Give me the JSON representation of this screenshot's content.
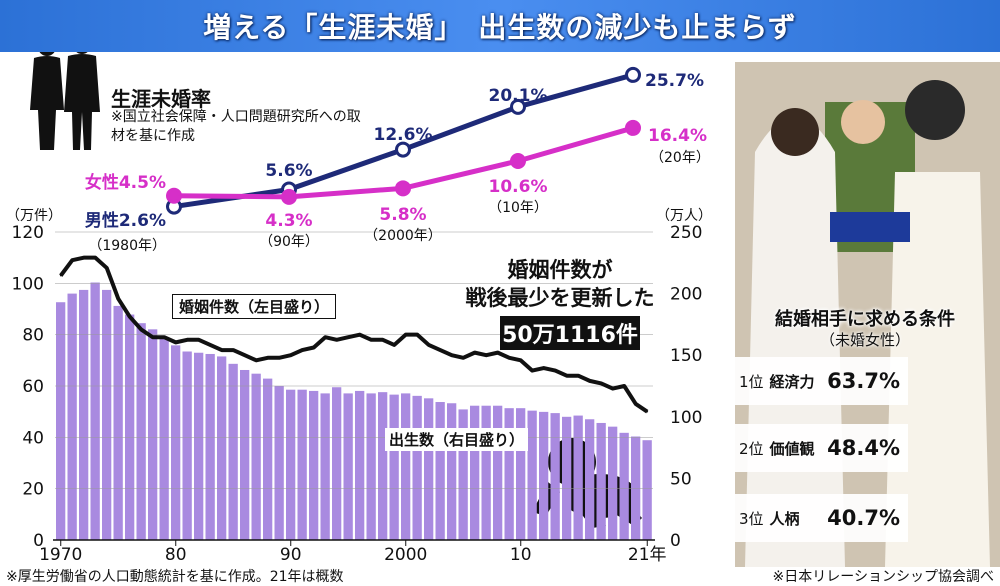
{
  "headline": "増える「生涯未婚」　出生数の減少も止まらず",
  "rate_panel": {
    "title": "生涯未婚率",
    "note": "※国立社会保障・人口問題研究所への取材を基に作成"
  },
  "callout": {
    "line1": "婚姻件数が",
    "line2": "戦後最少を更新した",
    "value": "50万1116件"
  },
  "series_labels": {
    "marriages": "婚姻件数（左目盛り）",
    "births": "出生数（右目盛り）"
  },
  "axis_units": {
    "left": "（万件）",
    "right": "（万人）"
  },
  "conditions": {
    "title": "結婚相手に求める条件",
    "subtitle": "（未婚女性）",
    "items": [
      {
        "rank": "1位",
        "label": "経済力",
        "value": "63.7%"
      },
      {
        "rank": "2位",
        "label": "価値観",
        "value": "48.4%"
      },
      {
        "rank": "3位",
        "label": "人柄",
        "value": "40.7%"
      }
    ]
  },
  "footer": {
    "left": "※厚生労働省の人口動態統計を基に作成。21年は概数",
    "right": "※日本リレーションシップ協会調べ"
  },
  "colors": {
    "banner": "#2c71d6",
    "men": "#1e2a78",
    "women": "#d62fc8",
    "bars": "#a98ae0",
    "line": "#111111"
  },
  "chart_data": [
    {
      "type": "line",
      "title": "生涯未婚率",
      "x": [
        "1980年",
        "90年",
        "2000年",
        "10年",
        "20年"
      ],
      "series": [
        {
          "name": "男性",
          "values": [
            2.6,
            5.6,
            12.6,
            20.1,
            25.7
          ],
          "labels": [
            "男性2.6%",
            "5.6%",
            "12.6%",
            "20.1%",
            "25.7%"
          ]
        },
        {
          "name": "女性",
          "values": [
            4.5,
            4.3,
            5.8,
            10.6,
            16.4
          ],
          "labels": [
            "女性4.5%",
            "4.3%",
            "5.8%",
            "10.6%",
            "16.4%"
          ]
        }
      ]
    },
    {
      "type": "bar",
      "x_start": 1970,
      "x_end": 2021,
      "x_ticks": [
        "1970",
        "80",
        "90",
        "2000",
        "10",
        "21年"
      ],
      "y_left_ticks": [
        0,
        20,
        40,
        60,
        80,
        100,
        120
      ],
      "y_right_ticks": [
        0,
        50,
        100,
        150,
        200,
        250
      ],
      "ylim_left": [
        0,
        120
      ],
      "ylim_right": [
        0,
        250
      ],
      "series": [
        {
          "name": "出生数",
          "axis": "right",
          "kind": "bar",
          "values": [
            193,
            200,
            203,
            209,
            203,
            190,
            183,
            176,
            171,
            164,
            158,
            153,
            152,
            151,
            149,
            143,
            138,
            135,
            131,
            125,
            122,
            122,
            121,
            119,
            124,
            119,
            121,
            119,
            120,
            118,
            119,
            117,
            115,
            112,
            111,
            106,
            109,
            109,
            109,
            107,
            107,
            105,
            104,
            103,
            100,
            101,
            98,
            95,
            92,
            87,
            84,
            81
          ]
        },
        {
          "name": "婚姻件数",
          "axis": "left",
          "kind": "line",
          "values": [
            103,
            109,
            110,
            110,
            106,
            94,
            87,
            82,
            79,
            79,
            77,
            78,
            78,
            76,
            74,
            74,
            72,
            70,
            71,
            71,
            72,
            74,
            75,
            79,
            78,
            79,
            80,
            78,
            78,
            76,
            80,
            80,
            76,
            74,
            72,
            71,
            73,
            72,
            73,
            71,
            70,
            66,
            67,
            66,
            64,
            64,
            62,
            61,
            59,
            60,
            53,
            50
          ]
        }
      ]
    }
  ]
}
